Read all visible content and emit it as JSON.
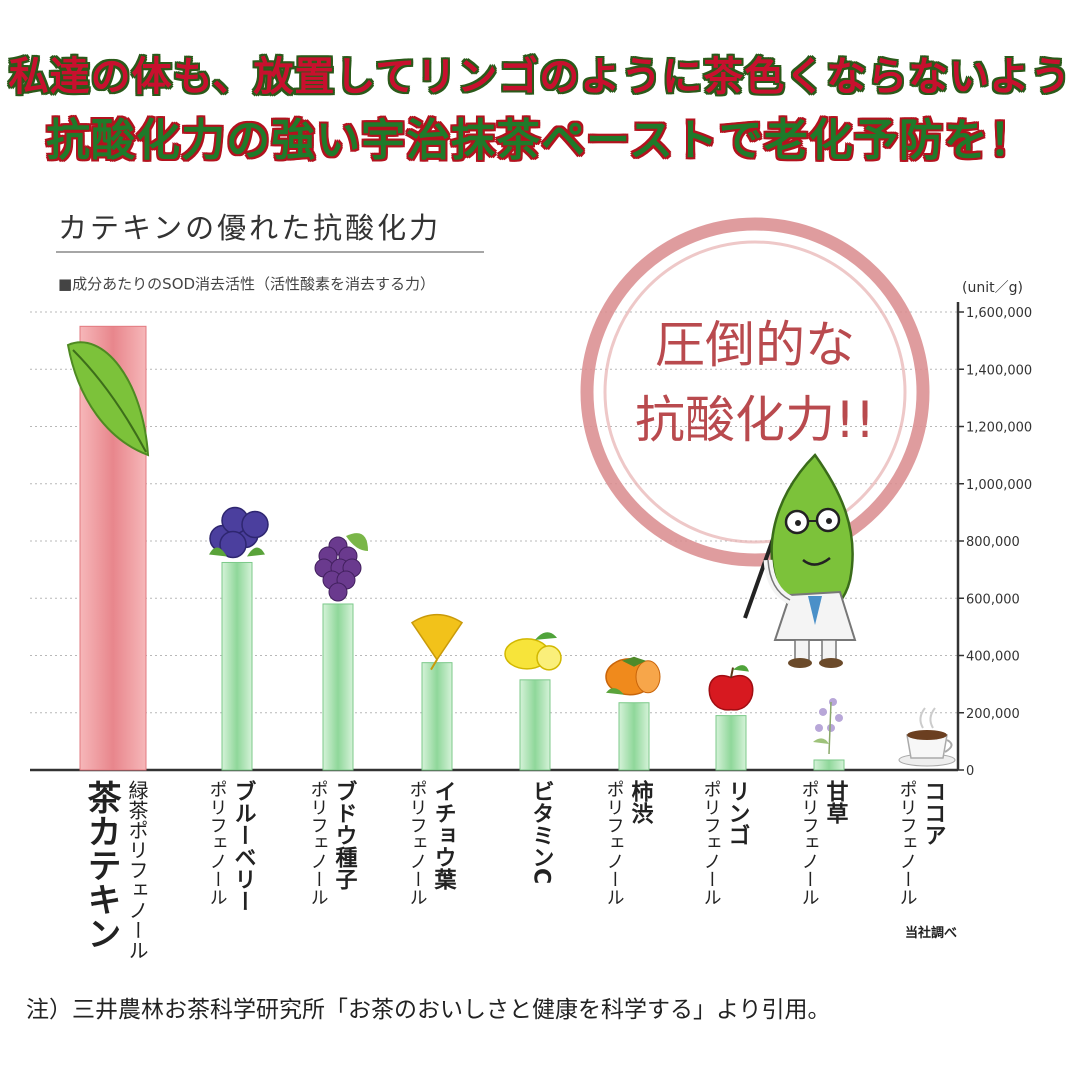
{
  "headline": {
    "line1": "私達の体も、放置してリンゴのように茶色くならないよう",
    "line2": "抗酸化力の強い宇治抹茶ペーストで老化予防を！"
  },
  "stamp": {
    "line1": "圧倒的な",
    "line2": "抗酸化力!!"
  },
  "footnote": "注）三井農林お茶科学研究所「お茶のおいしさと健康を科学する」より引用。",
  "source_note": "当社調べ",
  "colors": {
    "highlight_bar": "#e8868c",
    "bar": "#8fd79a",
    "stamp": "#d98b8d",
    "highlight_label": "#d9484f"
  },
  "chart_data": {
    "type": "bar",
    "title": "カテキンの優れた抗酸化力",
    "subtitle": "■成分あたりのSOD消去活性（活性酸素を消去する力）",
    "unit": "(unit／g)",
    "ylim": [
      0,
      1600000
    ],
    "yticks": [
      "0",
      "200,000",
      "400,000",
      "600,000",
      "800,000",
      "1,000,000",
      "1,200,000",
      "1,400,000",
      "1,600,000"
    ],
    "grid": true,
    "categories": [
      {
        "main": "茶カテキン",
        "sub": "緑茶ポリフェノール",
        "value": 1550000,
        "icon": "tea-leaf-icon",
        "highlight": true
      },
      {
        "main": "ブルーベリー",
        "sub": "ポリフェノール",
        "value": 725000,
        "icon": "blueberry-icon"
      },
      {
        "main": "ブドウ種子",
        "sub": "ポリフェノール",
        "value": 580000,
        "icon": "grape-icon"
      },
      {
        "main": "イチョウ葉",
        "sub": "ポリフェノール",
        "value": 375000,
        "icon": "ginkgo-leaf-icon"
      },
      {
        "main": "ビタミンC",
        "sub": "",
        "value": 315000,
        "icon": "lemon-icon"
      },
      {
        "main": "柿渋",
        "sub": "ポリフェノール",
        "value": 235000,
        "icon": "persimmon-icon"
      },
      {
        "main": "リンゴ",
        "sub": "ポリフェノール",
        "value": 190000,
        "icon": "apple-icon"
      },
      {
        "main": "甘草",
        "sub": "ポリフェノール",
        "value": 35000,
        "icon": "licorice-flower-icon"
      },
      {
        "main": "ココア",
        "sub": "ポリフェノール",
        "value": 0,
        "icon": "cocoa-cup-icon"
      }
    ]
  }
}
